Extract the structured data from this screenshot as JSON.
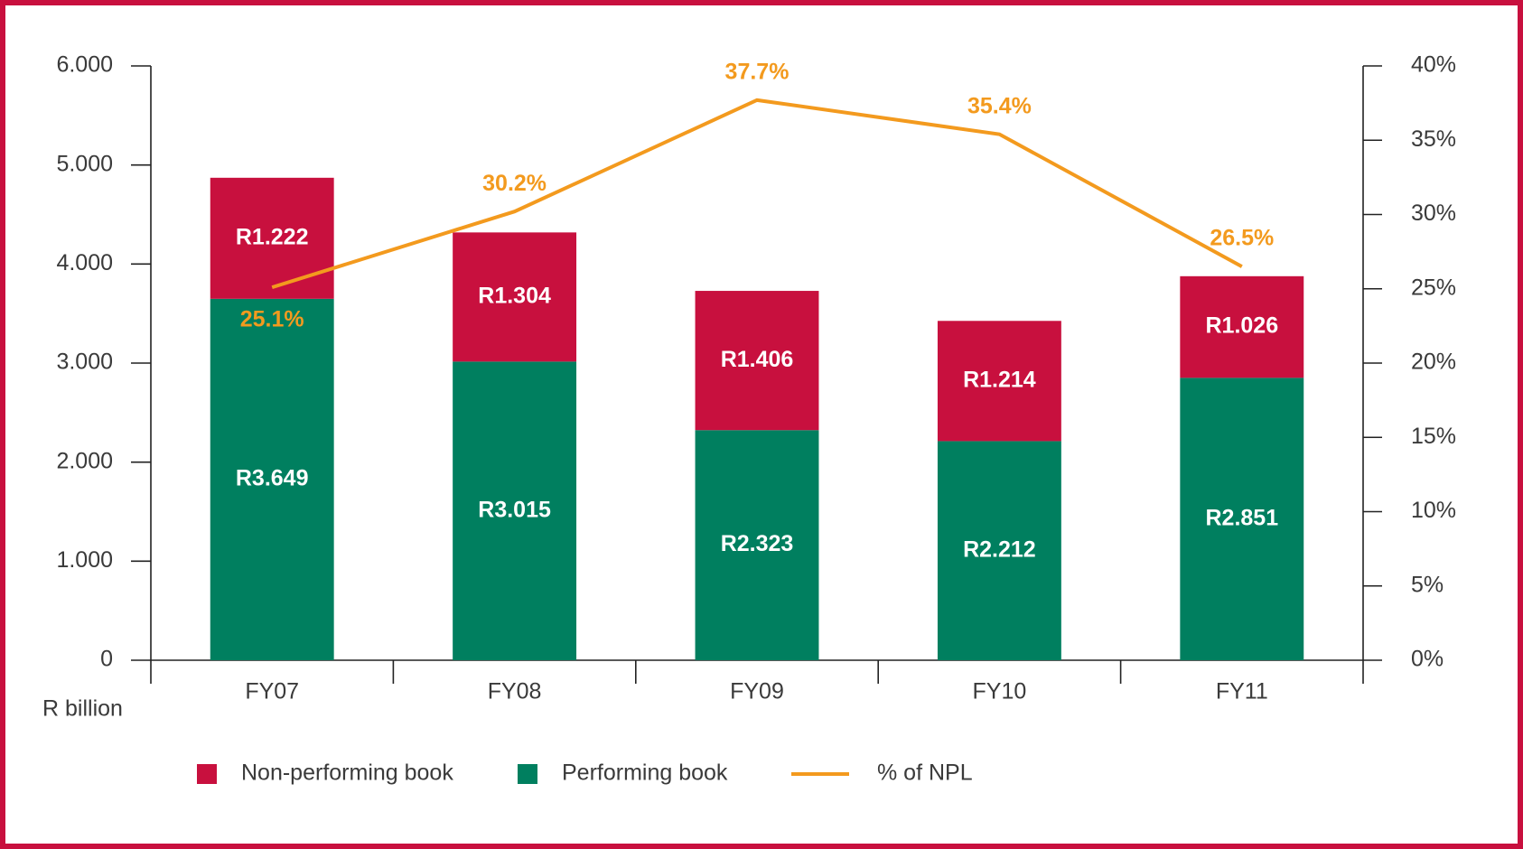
{
  "chart_data": {
    "type": "bar",
    "stacked": true,
    "categories": [
      "FY07",
      "FY08",
      "FY09",
      "FY10",
      "FY11"
    ],
    "x_axis_label": "R billion",
    "series": [
      {
        "name": "Performing book",
        "color": "#007f5f",
        "values": [
          3.649,
          3.015,
          2.323,
          2.212,
          2.851
        ],
        "value_labels": [
          "R3.649",
          "R3.015",
          "R2.323",
          "R2.212",
          "R2.851"
        ]
      },
      {
        "name": "Non-performing book",
        "color": "#c8103e",
        "values": [
          1.222,
          1.304,
          1.406,
          1.214,
          1.026
        ],
        "value_labels": [
          "R1.222",
          "R1.304",
          "R1.406",
          "R1.214",
          "R1.026"
        ]
      },
      {
        "name": "% of NPL",
        "type": "line",
        "axis": "y2",
        "color": "#f39a1e",
        "values": [
          25.1,
          30.2,
          37.7,
          35.4,
          26.5
        ],
        "value_labels": [
          "25.1%",
          "30.2%",
          "37.7%",
          "35.4%",
          "26.5%"
        ]
      }
    ],
    "legend_order": [
      1,
      0,
      2
    ],
    "ylim": [
      0,
      6
    ],
    "yticks": [
      0,
      {
        "value": 1,
        "label": "1.000"
      },
      {
        "value": 2,
        "label": "2.000"
      },
      {
        "value": 3,
        "label": "3.000"
      },
      {
        "value": 4,
        "label": "4.000"
      },
      {
        "value": 5,
        "label": "5.000"
      },
      {
        "value": 6,
        "label": "6.000"
      }
    ],
    "y2lim": [
      0,
      40
    ],
    "y2ticks": [
      {
        "value": 0,
        "label": "0%"
      },
      {
        "value": 5,
        "label": "5%"
      },
      {
        "value": 10,
        "label": "10%"
      },
      {
        "value": 15,
        "label": "15%"
      },
      {
        "value": 20,
        "label": "20%"
      },
      {
        "value": 25,
        "label": "25%"
      },
      {
        "value": 30,
        "label": "30%"
      },
      {
        "value": 35,
        "label": "35%"
      },
      {
        "value": 40,
        "label": "40%"
      }
    ],
    "grid": false,
    "legend": "bottom"
  }
}
